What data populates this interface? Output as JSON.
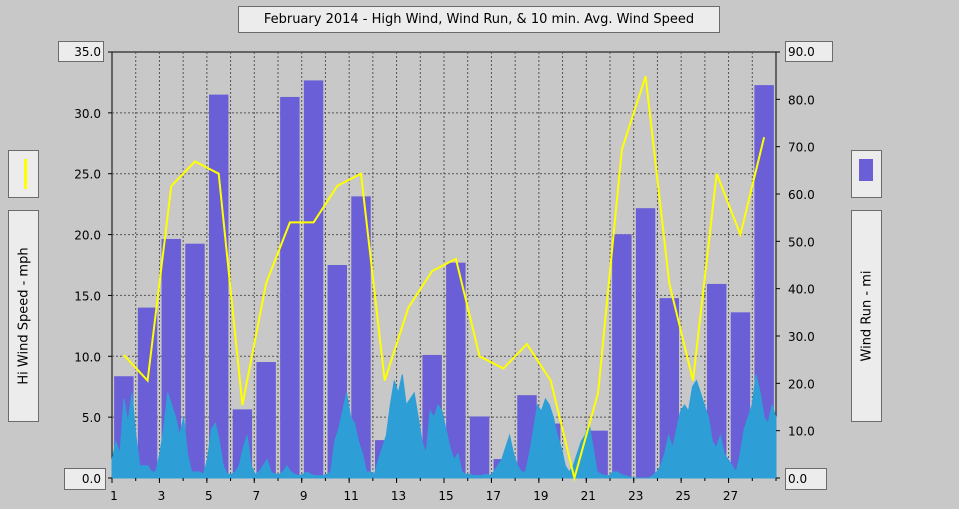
{
  "chart_data": {
    "type": "bar+line",
    "title": "February 2014 - High Wind, Wind Run, & 10 min. Avg. Wind Speed",
    "left_axis": {
      "label": "Hi Wind Speed - mph",
      "ticks": [
        "0.0",
        "5.0",
        "10.0",
        "15.0",
        "20.0",
        "25.0",
        "30.0",
        "35.0"
      ],
      "range": [
        0,
        35
      ]
    },
    "right_axis": {
      "label": "Wind Run - mi",
      "ticks": [
        "0.0",
        "10.0",
        "20.0",
        "30.0",
        "40.0",
        "50.0",
        "60.0",
        "70.0",
        "80.0",
        "90.0"
      ],
      "range": [
        0,
        90
      ]
    },
    "x_ticks": [
      "1",
      "3",
      "5",
      "7",
      "9",
      "11",
      "13",
      "15",
      "17",
      "19",
      "21",
      "23",
      "25",
      "27"
    ],
    "days": [
      1,
      2,
      3,
      4,
      5,
      6,
      7,
      8,
      9,
      10,
      11,
      12,
      13,
      14,
      15,
      16,
      17,
      18,
      19,
      20,
      21,
      22,
      23,
      24,
      25,
      26,
      27,
      28
    ],
    "grid": true,
    "series": [
      {
        "name": "Wind Run",
        "axis": "right",
        "kind": "bar",
        "color": "#6a5fd6",
        "values": [
          21.5,
          36.0,
          50.5,
          49.5,
          81.0,
          14.5,
          24.5,
          80.5,
          84.0,
          45.0,
          59.5,
          8.0,
          5.0,
          26.0,
          45.5,
          13.0,
          4.0,
          17.5,
          11.5,
          0.5,
          10.0,
          51.5,
          57.0,
          38.0,
          14.0,
          41.0,
          35.0,
          83.0
        ]
      },
      {
        "name": "Hi Wind Speed",
        "axis": "left",
        "kind": "line",
        "color": "#ffff00",
        "values": [
          10.1,
          8.0,
          24.0,
          26.0,
          25.0,
          6.0,
          16.0,
          21.0,
          21.0,
          24.0,
          25.0,
          8.0,
          14.0,
          17.0,
          18.0,
          10.0,
          9.0,
          11.0,
          8.0,
          0.0,
          7.0,
          27.0,
          33.0,
          16.0,
          8.0,
          25.0,
          20.0,
          28.0
        ]
      },
      {
        "name": "10 min. Avg. Wind Speed",
        "axis": "left",
        "kind": "area",
        "color": "#2e9ed6",
        "values": [
          1.5,
          3.0,
          2.0,
          6.5,
          4.5,
          7.0,
          3.5,
          1.0,
          1.0,
          1.0,
          0.5,
          0.5,
          2.0,
          4.0,
          7.0,
          6.0,
          5.0,
          3.5,
          5.0,
          2.0,
          0.5,
          0.5,
          0.5,
          0.3,
          1.5,
          4.0,
          4.5,
          3.0,
          1.0,
          0.3,
          0.3,
          0.5,
          1.0,
          2.5,
          3.5,
          1.0,
          0.3,
          0.5,
          1.0,
          1.5,
          0.5,
          0.3,
          0.3,
          0.5,
          1.0,
          0.5,
          0.3,
          0.2,
          0.3,
          0.5,
          0.3,
          0.2,
          0.2,
          0.2,
          0.3,
          0.5,
          3.0,
          4.0,
          5.5,
          7.0,
          5.0,
          4.5,
          3.0,
          2.0,
          0.5,
          0.5,
          0.3,
          1.5,
          2.5,
          3.5,
          6.0,
          8.0,
          7.0,
          8.5,
          6.0,
          6.5,
          7.0,
          5.0,
          3.0,
          2.0,
          5.5,
          5.0,
          6.0,
          5.5,
          4.0,
          2.5,
          1.5,
          2.0,
          0.5,
          0.3,
          0.3,
          0.2,
          0.2,
          0.2,
          0.3,
          0.2,
          0.5,
          1.0,
          1.5,
          2.5,
          3.5,
          2.0,
          1.0,
          0.5,
          0.5,
          2.0,
          4.0,
          6.0,
          5.5,
          6.5,
          6.0,
          5.0,
          3.5,
          2.5,
          1.0,
          0.5,
          1.0,
          2.0,
          3.0,
          3.5,
          4.5,
          2.5,
          0.5,
          0.3,
          0.2,
          0.2,
          0.5,
          0.5,
          0.3,
          0.2,
          0.1,
          0.0,
          0.0,
          0.0,
          0.0,
          0.0,
          0.2,
          0.5,
          1.0,
          2.0,
          3.5,
          2.5,
          4.0,
          5.5,
          6.0,
          5.5,
          7.5,
          8.0,
          7.0,
          6.0,
          5.0,
          3.0,
          2.5,
          3.5,
          2.0,
          1.5,
          1.0,
          0.5,
          2.0,
          4.0,
          5.0,
          6.0,
          8.5,
          7.0,
          5.0,
          4.5,
          6.0,
          5.0
        ]
      }
    ]
  }
}
